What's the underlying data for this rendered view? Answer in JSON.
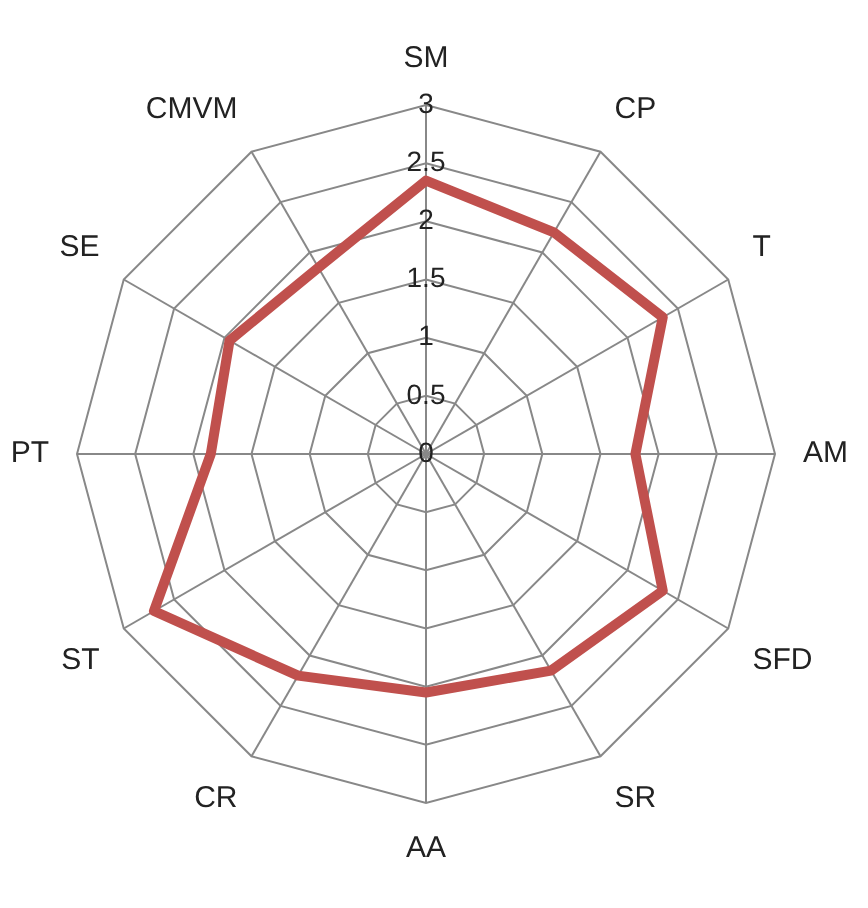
{
  "chart_data": {
    "type": "radar",
    "categories": [
      "SM",
      "CP",
      "T",
      "AM",
      "SFD",
      "SR",
      "AA",
      "CR",
      "ST",
      "PT",
      "SE",
      "CMVM"
    ],
    "series": [
      {
        "color": "#c0504d",
        "values": [
          2.35,
          2.2,
          2.35,
          1.8,
          2.35,
          2.15,
          2.05,
          2.2,
          2.7,
          1.85,
          1.95,
          1.85
        ]
      }
    ],
    "ylim": [
      0,
      3
    ],
    "yticks": [
      0,
      0.5,
      1,
      1.5,
      2,
      2.5,
      3
    ],
    "grid": true,
    "legend": false,
    "marker": "none",
    "line_style": "solid"
  }
}
